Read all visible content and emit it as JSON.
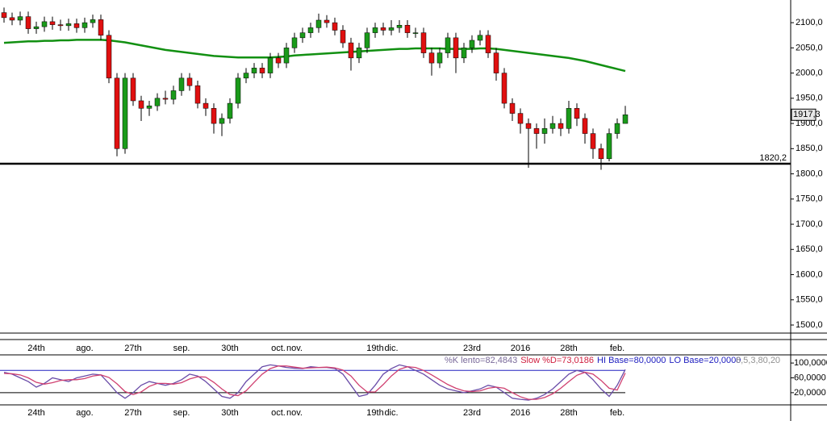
{
  "chart_data": [
    {
      "type": "candlestick",
      "categories": [
        null,
        null,
        null,
        null,
        "24th",
        null,
        null,
        null,
        null,
        null,
        "ago.",
        null,
        null,
        null,
        null,
        null,
        "27th",
        null,
        null,
        null,
        null,
        null,
        "sep.",
        null,
        null,
        null,
        null,
        null,
        "30th",
        null,
        null,
        null,
        null,
        null,
        "oct.",
        null,
        "nov.",
        null,
        null,
        null,
        null,
        null,
        null,
        null,
        null,
        null,
        "19th",
        null,
        "dic.",
        null,
        null,
        null,
        null,
        null,
        null,
        null,
        null,
        null,
        "23rd",
        null,
        null,
        null,
        null,
        null,
        "2016",
        null,
        null,
        null,
        null,
        null,
        "28th",
        null,
        null,
        null,
        null,
        null,
        "feb.",
        null
      ],
      "open": [
        2120,
        2110,
        2105,
        2112,
        2088,
        2092,
        2102,
        2096,
        2094,
        2098,
        2090,
        2100,
        2106,
        2075,
        1990,
        1850,
        1990,
        1945,
        1930,
        1935,
        1950,
        1948,
        1965,
        1990,
        1975,
        1940,
        1930,
        1900,
        1910,
        1940,
        1990,
        2000,
        2010,
        2000,
        2030,
        2020,
        2050,
        2070,
        2080,
        2090,
        2105,
        2100,
        2085,
        2060,
        2030,
        2050,
        2080,
        2090,
        2085,
        2090,
        2095,
        2080,
        2080,
        2040,
        2020,
        2040,
        2070,
        2030,
        2050,
        2065,
        2075,
        2040,
        2000,
        1940,
        1920,
        1900,
        1890,
        1880,
        1890,
        1900,
        1890,
        1930,
        1910,
        1880,
        1850,
        1830,
        1880,
        1900
      ],
      "high": [
        2130,
        2120,
        2122,
        2122,
        2102,
        2112,
        2112,
        2106,
        2108,
        2108,
        2110,
        2116,
        2116,
        2085,
        2000,
        2000,
        2000,
        1955,
        1945,
        1960,
        1965,
        1975,
        2000,
        2000,
        1985,
        1950,
        1940,
        1920,
        1950,
        2000,
        2010,
        2020,
        2020,
        2040,
        2040,
        2060,
        2080,
        2090,
        2100,
        2118,
        2115,
        2110,
        2095,
        2070,
        2060,
        2090,
        2100,
        2100,
        2105,
        2105,
        2105,
        2090,
        2090,
        2050,
        2050,
        2080,
        2080,
        2060,
        2075,
        2085,
        2085,
        2050,
        2010,
        1950,
        1930,
        1910,
        1900,
        1910,
        1915,
        1910,
        1945,
        1940,
        1920,
        1890,
        1860,
        1890,
        1910,
        1935
      ],
      "low": [
        2100,
        2095,
        2095,
        2078,
        2078,
        2082,
        2086,
        2084,
        2084,
        2080,
        2080,
        2090,
        2065,
        1980,
        1835,
        1840,
        1935,
        1905,
        1915,
        1925,
        1938,
        1938,
        1955,
        1965,
        1930,
        1915,
        1880,
        1875,
        1900,
        1930,
        1980,
        1990,
        1990,
        1990,
        2010,
        2010,
        2040,
        2060,
        2070,
        2080,
        2090,
        2075,
        2050,
        2005,
        2020,
        2040,
        2070,
        2075,
        2075,
        2080,
        2070,
        2070,
        2030,
        1995,
        2010,
        2030,
        2000,
        2020,
        2040,
        2055,
        2030,
        1985,
        1930,
        1905,
        1880,
        1812,
        1850,
        1860,
        1880,
        1875,
        1880,
        1895,
        1860,
        1830,
        1808,
        1825,
        1870,
        1900
      ],
      "close": [
        2110,
        2105,
        2112,
        2088,
        2092,
        2102,
        2096,
        2094,
        2098,
        2090,
        2100,
        2106,
        2075,
        1990,
        1850,
        1990,
        1945,
        1930,
        1935,
        1950,
        1948,
        1965,
        1990,
        1975,
        1940,
        1930,
        1900,
        1910,
        1940,
        1990,
        2000,
        2010,
        2000,
        2030,
        2020,
        2050,
        2070,
        2080,
        2090,
        2105,
        2100,
        2085,
        2060,
        2030,
        2050,
        2080,
        2090,
        2085,
        2090,
        2095,
        2080,
        2080,
        2040,
        2020,
        2040,
        2070,
        2030,
        2050,
        2065,
        2075,
        2040,
        2000,
        1940,
        1920,
        1900,
        1890,
        1880,
        1890,
        1900,
        1890,
        1930,
        1910,
        1880,
        1850,
        1830,
        1880,
        1900,
        1917.3
      ],
      "up_color": "#1a9a1a",
      "down_color": "#e01010",
      "moving_average": {
        "color": "#129012",
        "values": [
          2060,
          2061,
          2062,
          2063,
          2063,
          2064,
          2064,
          2065,
          2065,
          2066,
          2066,
          2066,
          2066,
          2065,
          2063,
          2061,
          2058,
          2055,
          2052,
          2049,
          2046,
          2044,
          2042,
          2040,
          2038,
          2036,
          2034,
          2033,
          2032,
          2031,
          2031,
          2031,
          2031,
          2031,
          2032,
          2033,
          2035,
          2036,
          2037,
          2038,
          2039,
          2040,
          2041,
          2042,
          2043,
          2044,
          2045,
          2046,
          2047,
          2048,
          2048,
          2049,
          2049,
          2049,
          2049,
          2048,
          2048,
          2048,
          2048,
          2049,
          2049,
          2048,
          2046,
          2044,
          2042,
          2040,
          2038,
          2036,
          2034,
          2032,
          2030,
          2027,
          2024,
          2020,
          2016,
          2012,
          2008,
          2004
        ]
      },
      "last_price_label": "1917,3",
      "hline": {
        "value": 1820.2,
        "label": "1820,2"
      },
      "ylim": [
        1484,
        2145
      ],
      "yticks": [
        {
          "value": 2100,
          "label": "2100,0"
        },
        {
          "value": 2050,
          "label": "2050,0"
        },
        {
          "value": 2000,
          "label": "2000,0"
        },
        {
          "value": 1950,
          "label": "1950,0"
        },
        {
          "value": 1900,
          "label": "1900,0"
        },
        {
          "value": 1850,
          "label": "1850,0"
        },
        {
          "value": 1800,
          "label": "1800,0"
        },
        {
          "value": 1750,
          "label": "1750,0"
        },
        {
          "value": 1700,
          "label": "1700,0"
        },
        {
          "value": 1650,
          "label": "1650,0"
        },
        {
          "value": 1600,
          "label": "1600,0"
        },
        {
          "value": 1550,
          "label": "1550,0"
        },
        {
          "value": 1500,
          "label": "1500,0"
        }
      ]
    },
    {
      "type": "line",
      "series": [
        {
          "color": "#6a4ca8",
          "values": [
            75,
            70,
            60,
            50,
            35,
            45,
            60,
            55,
            50,
            60,
            65,
            70,
            68,
            45,
            20,
            5,
            20,
            40,
            50,
            45,
            40,
            45,
            55,
            70,
            65,
            50,
            30,
            10,
            5,
            20,
            50,
            70,
            90,
            95,
            92,
            88,
            86,
            85,
            90,
            88,
            88,
            85,
            70,
            40,
            10,
            15,
            40,
            70,
            85,
            95,
            90,
            80,
            70,
            55,
            40,
            30,
            25,
            20,
            25,
            30,
            40,
            35,
            20,
            5,
            2,
            0,
            5,
            15,
            30,
            50,
            70,
            80,
            75,
            55,
            30,
            10,
            40,
            82.4843
          ]
        },
        {
          "color": "#d04070",
          "values": [
            72,
            71,
            68,
            60,
            48,
            43,
            47,
            53,
            55,
            55,
            58,
            65,
            68,
            61,
            44,
            23,
            15,
            22,
            37,
            45,
            45,
            43,
            47,
            57,
            63,
            62,
            48,
            30,
            15,
            12,
            25,
            48,
            70,
            85,
            92,
            92,
            89,
            86,
            87,
            88,
            89,
            87,
            81,
            65,
            40,
            22,
            22,
            42,
            65,
            83,
            90,
            88,
            80,
            68,
            55,
            42,
            32,
            25,
            23,
            25,
            32,
            35,
            32,
            20,
            9,
            2,
            2,
            7,
            17,
            32,
            50,
            67,
            75,
            70,
            53,
            32,
            27,
            73.0186
          ]
        }
      ],
      "bands": [
        80,
        20
      ],
      "legend": [
        {
          "text": "%K lento=82,4843",
          "color": "#7a6a9a"
        },
        {
          "text": "Slow %D=73,0186",
          "color": "#d02040"
        },
        {
          "text": "HI Base=80,0000",
          "color": "#2020c0"
        },
        {
          "text": "LO Base=20,0000",
          "color": "#2020c0"
        },
        {
          "text": "8,5,3,80,20",
          "color": "#909090"
        }
      ],
      "ylim": [
        -2,
        122
      ],
      "yticks": [
        {
          "value": 100,
          "label": "100,0000"
        },
        {
          "value": 60,
          "label": "60,0000"
        },
        {
          "value": 20,
          "label": "20,0000"
        }
      ]
    }
  ]
}
